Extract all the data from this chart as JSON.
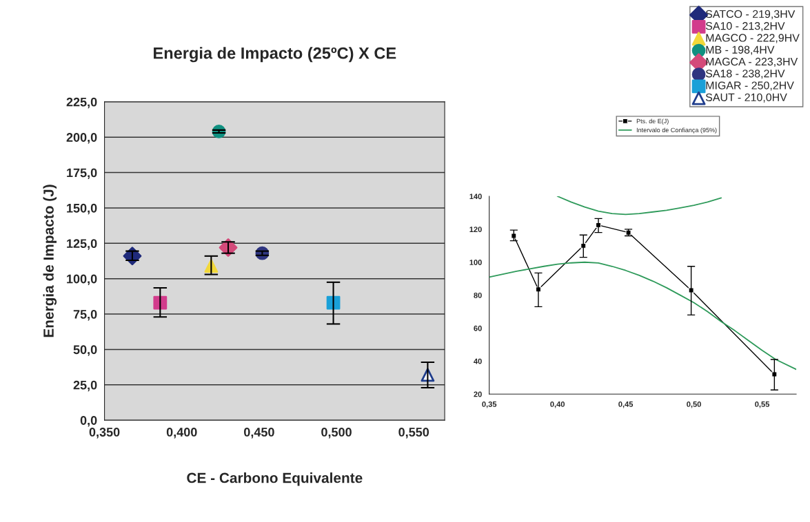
{
  "chart_data": [
    {
      "type": "scatter",
      "title": "Energia de Impacto (25ºC) X CE",
      "xlabel": "CE - Carbono Equivalente",
      "ylabel": "Energia de Impacto (J)",
      "xlim": [
        0.35,
        0.57
      ],
      "xticks": [
        {
          "value": 0.35,
          "label": "0,350"
        },
        {
          "value": 0.4,
          "label": "0,400"
        },
        {
          "value": 0.45,
          "label": "0,450"
        },
        {
          "value": 0.5,
          "label": "0,500"
        },
        {
          "value": 0.55,
          "label": "0,550"
        }
      ],
      "ylim": [
        0,
        225
      ],
      "yticks": [
        {
          "value": 0,
          "label": "0,0"
        },
        {
          "value": 25,
          "label": "25,0"
        },
        {
          "value": 50,
          "label": "50,0"
        },
        {
          "value": 75,
          "label": "75,0"
        },
        {
          "value": 100,
          "label": "100,0"
        },
        {
          "value": 125,
          "label": "125,0"
        },
        {
          "value": 150,
          "label": "150,0"
        },
        {
          "value": 175,
          "label": "175,0"
        },
        {
          "value": 200,
          "label": "200,0"
        },
        {
          "value": 225,
          "label": "225,0"
        }
      ],
      "grid": "y",
      "legend": "top right",
      "series": [
        {
          "name": "SATCO - 219,3HV",
          "color": "#1f2a7a",
          "marker": "diamond",
          "x": [
            0.368
          ],
          "values": [
            116
          ],
          "errors": [
            [
              113,
              119.5
            ]
          ]
        },
        {
          "name": "SA10 - 213,2HV",
          "color": "#d23c8c",
          "marker": "square",
          "x": [
            0.386
          ],
          "values": [
            83
          ],
          "errors": [
            [
              73,
              93.5
            ]
          ]
        },
        {
          "name": "MAGCO - 222,9HV",
          "color": "#f2d83a",
          "marker": "triangle",
          "x": [
            0.419
          ],
          "values": [
            109
          ],
          "errors": [
            [
              103,
              116
            ]
          ]
        },
        {
          "name": "MB - 198,4HV",
          "color": "#109080",
          "marker": "circle",
          "x": [
            0.424
          ],
          "values": [
            204
          ],
          "errors": [
            [
              203,
              205
            ]
          ]
        },
        {
          "name": "MAGCA - 223,3HV",
          "color": "#d44a7a",
          "marker": "diamond",
          "x": [
            0.43
          ],
          "values": [
            122
          ],
          "errors": [
            [
              118,
              126
            ]
          ]
        },
        {
          "name": "SA18 - 238,2HV",
          "color": "#2f3580",
          "marker": "circle",
          "x": [
            0.452
          ],
          "values": [
            118
          ],
          "errors": [
            [
              116.5,
              119.5
            ]
          ]
        },
        {
          "name": "MIGAR - 250,2HV",
          "color": "#1aa0d8",
          "marker": "square",
          "x": [
            0.498
          ],
          "values": [
            83
          ],
          "errors": [
            [
              68,
              97.5
            ]
          ]
        },
        {
          "name": "SAUT - 210,0HV",
          "color": "#1f3d8c",
          "marker": "triangle",
          "x": [
            0.559
          ],
          "values": [
            32
          ],
          "errors": [
            [
              23,
              41
            ]
          ]
        }
      ]
    },
    {
      "type": "line",
      "xlim": [
        0.35,
        0.575
      ],
      "xticks": [
        {
          "value": 0.35,
          "label": "0,35"
        },
        {
          "value": 0.4,
          "label": "0,40"
        },
        {
          "value": 0.45,
          "label": "0,45"
        },
        {
          "value": 0.5,
          "label": "0,50"
        },
        {
          "value": 0.55,
          "label": "0,55"
        }
      ],
      "ylim": [
        20,
        140
      ],
      "yticks": [
        20,
        40,
        60,
        80,
        100,
        120,
        140
      ],
      "grid": false,
      "legend": "top right",
      "series": [
        {
          "name": "Pts. de E(J)",
          "color": "#000000",
          "marker": "square",
          "line_style": "solid",
          "x": [
            0.368,
            0.386,
            0.419,
            0.43,
            0.452,
            0.498,
            0.559
          ],
          "values": [
            116,
            83.5,
            110,
            122.5,
            118,
            83,
            32
          ],
          "errors": [
            [
              113,
              119.5
            ],
            [
              73,
              93.5
            ],
            [
              103,
              116.5
            ],
            [
              118,
              126.5
            ],
            [
              116,
              120
            ],
            [
              68,
              97.5
            ],
            [
              22.5,
              41
            ]
          ]
        },
        {
          "name": "Intervalo de Confiança (95%)",
          "color": "#2e9a5a",
          "marker": "none",
          "line_style": "solid",
          "x": [
            0.35,
            0.37,
            0.39,
            0.4,
            0.41,
            0.42,
            0.43,
            0.44,
            0.45,
            0.46,
            0.47,
            0.48,
            0.49,
            0.5,
            0.51,
            0.52,
            0.53,
            0.54,
            0.55,
            0.56,
            0.575
          ],
          "values": [
            91,
            94.5,
            97.5,
            98.8,
            99.6,
            100,
            99.5,
            97.5,
            95,
            92,
            88.5,
            84.5,
            80,
            75.5,
            70,
            64,
            58.5,
            52.5,
            46.5,
            41,
            35
          ]
        },
        {
          "color": "#2e9a5a",
          "marker": "none",
          "line_style": "solid",
          "x": [
            0.4,
            0.41,
            0.42,
            0.43,
            0.44,
            0.45,
            0.46,
            0.47,
            0.48,
            0.49,
            0.5,
            0.51,
            0.52
          ],
          "values": [
            140,
            136.5,
            133.5,
            131,
            129.5,
            129,
            129.5,
            130.5,
            131.5,
            133,
            134.5,
            136.5,
            139
          ]
        }
      ]
    }
  ]
}
